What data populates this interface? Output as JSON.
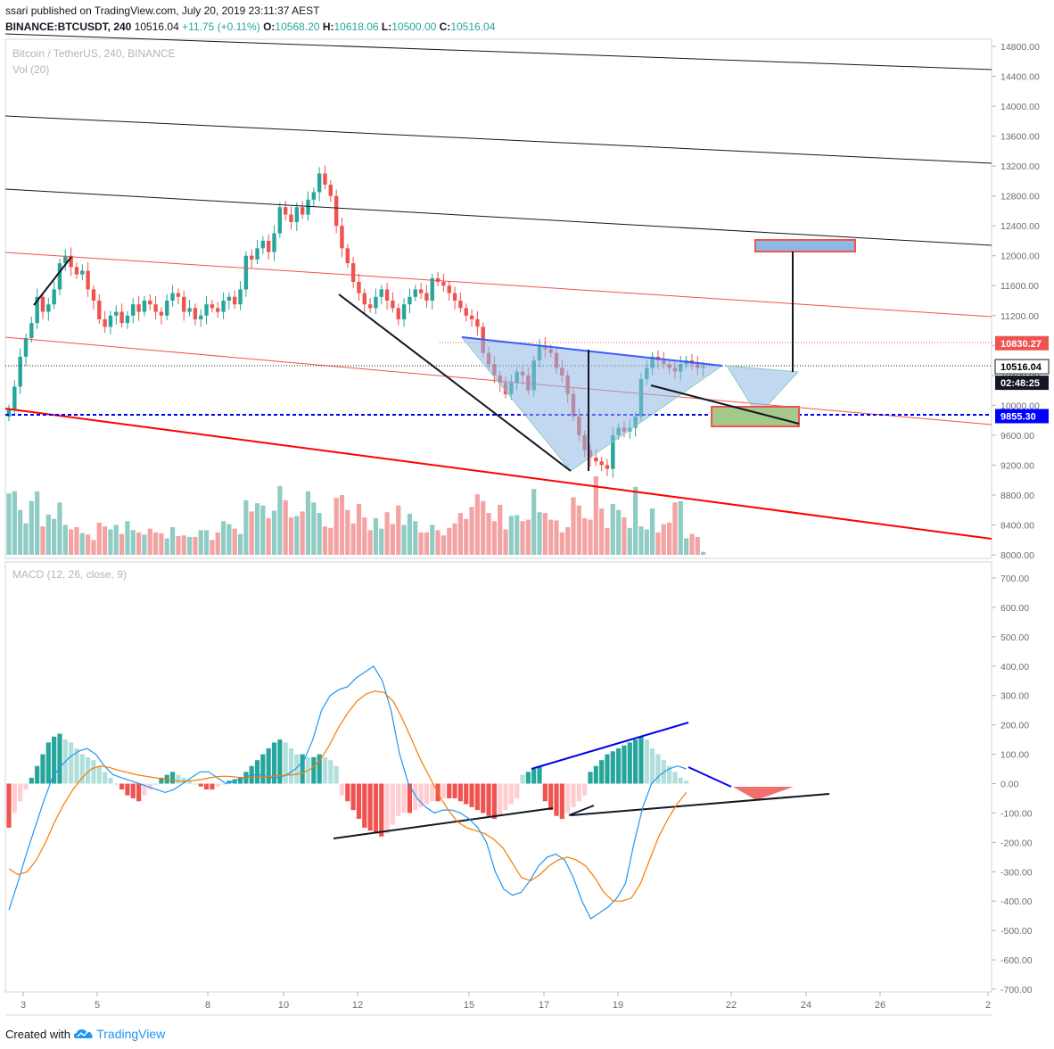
{
  "header": {
    "user": "ssari",
    "published_text": "published on TradingView.com, July 20, 2019 23:11:37 AEST",
    "symbol": "BINANCE:BTCUSDT, 240",
    "last": "10516.04",
    "change": "+11.75 (+0.11%)",
    "o_label": "O:",
    "o_value": "10568.20",
    "h_label": "H:",
    "h_value": "10618.06",
    "l_label": "L:",
    "l_value": "10500.00",
    "c_label": "C:",
    "c_value": "10516.04"
  },
  "footer": {
    "created_with": "Created with",
    "brand": "TradingView",
    "logo_icon": "tradingview-cloud-icon"
  },
  "colors": {
    "up": "#26a69a",
    "down": "#ef5350",
    "up_vol": "#8fccc4",
    "down_vol": "#f3a3a3",
    "macd": "#2196f3",
    "signal": "#f57c00",
    "hist_up_strong": "#26a69a",
    "hist_up_weak": "#b2dfdb",
    "hist_down_strong": "#ef5350",
    "hist_down_weak": "#ffcdd2"
  },
  "chart_data": {
    "type": "candlestick",
    "title": "Bitcoin / TetherUS, 240, BINANCE",
    "volume_label": "Vol (20)",
    "x_ticks": [
      "3",
      "5",
      "8",
      "10",
      "12",
      "15",
      "17",
      "19",
      "22",
      "24",
      "26",
      "2"
    ],
    "y_ticks": [
      "14800.00",
      "14400.00",
      "14000.00",
      "13600.00",
      "13200.00",
      "12800.00",
      "12400.00",
      "12000.00",
      "11600.00",
      "11200.00",
      "10800.00",
      "10400.00",
      "10000.00",
      "9600.00",
      "9200.00",
      "8800.00",
      "8400.00",
      "8000.00"
    ],
    "ylim": [
      8000,
      14900
    ],
    "price_labels": [
      {
        "value": 10830.27,
        "text": "10830.27",
        "color": "#ef5350"
      },
      {
        "value": 10516.04,
        "text": "10516.04",
        "color": "#000000"
      },
      {
        "value": 10516.04,
        "text": "02:48:25",
        "color": "#ffffff",
        "offset": 1
      },
      {
        "value": 9855.3,
        "text": "9855.30",
        "color": "#0000ff"
      }
    ],
    "closes": [
      9950,
      10250,
      10650,
      10900,
      11100,
      11450,
      11250,
      11350,
      11550,
      11900,
      12000,
      11850,
      11750,
      11800,
      11550,
      11400,
      11150,
      11050,
      11200,
      11250,
      11100,
      11200,
      11350,
      11250,
      11400,
      11350,
      11250,
      11200,
      11400,
      11500,
      11450,
      11250,
      11300,
      11150,
      11200,
      11350,
      11300,
      11250,
      11400,
      11450,
      11350,
      11550,
      12000,
      11950,
      12100,
      12200,
      12050,
      12300,
      12650,
      12550,
      12450,
      12650,
      12550,
      12750,
      12850,
      13100,
      12950,
      12800,
      12400,
      12100,
      11900,
      11650,
      11500,
      11350,
      11300,
      11450,
      11550,
      11400,
      11300,
      11150,
      11350,
      11450,
      11550,
      11500,
      11400,
      11700,
      11650,
      11600,
      11500,
      11400,
      11300,
      11200,
      11150,
      11050,
      10700,
      10550,
      10400,
      10300,
      10150,
      10300,
      10450,
      10400,
      10200,
      10600,
      10800,
      10750,
      10700,
      10500,
      10400,
      10150,
      9850,
      9600,
      9400,
      9300,
      9250,
      9200,
      9150,
      9600,
      9700,
      9650,
      9700,
      9850,
      10350,
      10500,
      10650,
      10600,
      10550,
      10500,
      10450,
      10550,
      10600,
      10550,
      10500,
      10516
    ],
    "volume": [
      8820,
      8850,
      8600,
      8420,
      8720,
      8850,
      8380,
      8540,
      8480,
      8700,
      8400,
      8340,
      8370,
      8290,
      8270,
      8200,
      8430,
      8380,
      8340,
      8400,
      8280,
      8450,
      8330,
      8300,
      8270,
      8350,
      8300,
      8290,
      8220,
      8370,
      8250,
      8260,
      8240,
      8240,
      8330,
      8330,
      8200,
      8300,
      8450,
      8410,
      8350,
      8280,
      8730,
      8580,
      8690,
      8660,
      8490,
      8590,
      8920,
      8730,
      8500,
      8520,
      8580,
      8850,
      8700,
      8560,
      8380,
      8360,
      8760,
      8800,
      8600,
      8420,
      8680,
      8500,
      8330,
      8490,
      8350,
      8570,
      8410,
      8660,
      8400,
      8550,
      8450,
      8300,
      8300,
      8400,
      8330,
      8260,
      8360,
      8420,
      8560,
      8480,
      8640,
      8810,
      8720,
      8560,
      8450,
      8670,
      8340,
      8520,
      8530,
      8450,
      8470,
      8880,
      8570,
      8560,
      8470,
      8460,
      8300,
      8370,
      8770,
      8660,
      8490,
      8470,
      9050,
      8620,
      8360,
      8680,
      8600,
      8500,
      8360,
      8910,
      8380,
      8340,
      8620,
      8300,
      8410,
      8430,
      8700,
      8720,
      8220,
      8280,
      8240,
      8040
    ],
    "macd_hist": [
      -150,
      -100,
      -60,
      -20,
      20,
      60,
      100,
      140,
      160,
      170,
      150,
      140,
      120,
      100,
      90,
      80,
      60,
      40,
      20,
      0,
      -20,
      -40,
      -50,
      -60,
      -40,
      -20,
      0,
      20,
      30,
      40,
      30,
      20,
      10,
      0,
      -10,
      -20,
      -20,
      -10,
      0,
      10,
      15,
      20,
      40,
      60,
      80,
      100,
      120,
      140,
      150,
      140,
      120,
      100,
      100,
      90,
      90,
      100,
      90,
      80,
      60,
      -40,
      -60,
      -90,
      -120,
      -150,
      -160,
      -170,
      -180,
      -170,
      -140,
      -110,
      -100,
      -100,
      -90,
      -80,
      -70,
      -60,
      -60,
      -50,
      -50,
      -50,
      -60,
      -70,
      -80,
      -90,
      -100,
      -110,
      -120,
      -110,
      -90,
      -70,
      -50,
      30,
      40,
      50,
      60,
      -60,
      -90,
      -110,
      -120,
      -100,
      -80,
      -60,
      -40,
      40,
      60,
      80,
      100,
      110,
      120,
      130,
      140,
      150,
      160,
      150,
      120,
      100,
      80,
      60,
      40,
      20,
      10
    ],
    "macd_line": [
      -430,
      -340,
      -240,
      -150,
      -60,
      20,
      60,
      90,
      110,
      120,
      100,
      60,
      30,
      20,
      10,
      0,
      -10,
      -20,
      -30,
      -20,
      0,
      20,
      40,
      40,
      20,
      0,
      10,
      20,
      30,
      30,
      20,
      20,
      30,
      50,
      80,
      150,
      250,
      300,
      320,
      330,
      360,
      380,
      400,
      350,
      250,
      100,
      0,
      -50,
      -80,
      -100,
      -90,
      -90,
      -100,
      -120,
      -150,
      -200,
      -300,
      -360,
      -380,
      -370,
      -330,
      -280,
      -250,
      -240,
      -260,
      -320,
      -400,
      -460,
      -440,
      -420,
      -390,
      -340,
      -200,
      -80,
      0,
      30,
      50,
      60,
      50
    ],
    "signal_line": [
      -290,
      -310,
      -300,
      -260,
      -200,
      -130,
      -70,
      -20,
      20,
      50,
      60,
      55,
      45,
      38,
      30,
      25,
      20,
      15,
      10,
      8,
      10,
      14,
      20,
      25,
      25,
      22,
      20,
      22,
      24,
      26,
      28,
      30,
      35,
      50,
      80,
      130,
      190,
      240,
      280,
      305,
      315,
      310,
      280,
      220,
      150,
      80,
      20,
      -40,
      -90,
      -130,
      -150,
      -160,
      -170,
      -190,
      -220,
      -270,
      -320,
      -330,
      -310,
      -280,
      -260,
      -250,
      -260,
      -280,
      -320,
      -370,
      -400,
      -400,
      -390,
      -340,
      -260,
      -180,
      -120,
      -70,
      -30
    ],
    "macd_label": "MACD (12, 26, close, 9)",
    "macd_y_ticks": [
      "700.00",
      "600.00",
      "500.00",
      "400.00",
      "300.00",
      "200.00",
      "100.00",
      "0.00",
      "-100.00",
      "-200.00",
      "-300.00",
      "-400.00",
      "-500.00",
      "-600.00",
      "-700.00"
    ],
    "macd_ylim": [
      -700,
      750
    ]
  }
}
